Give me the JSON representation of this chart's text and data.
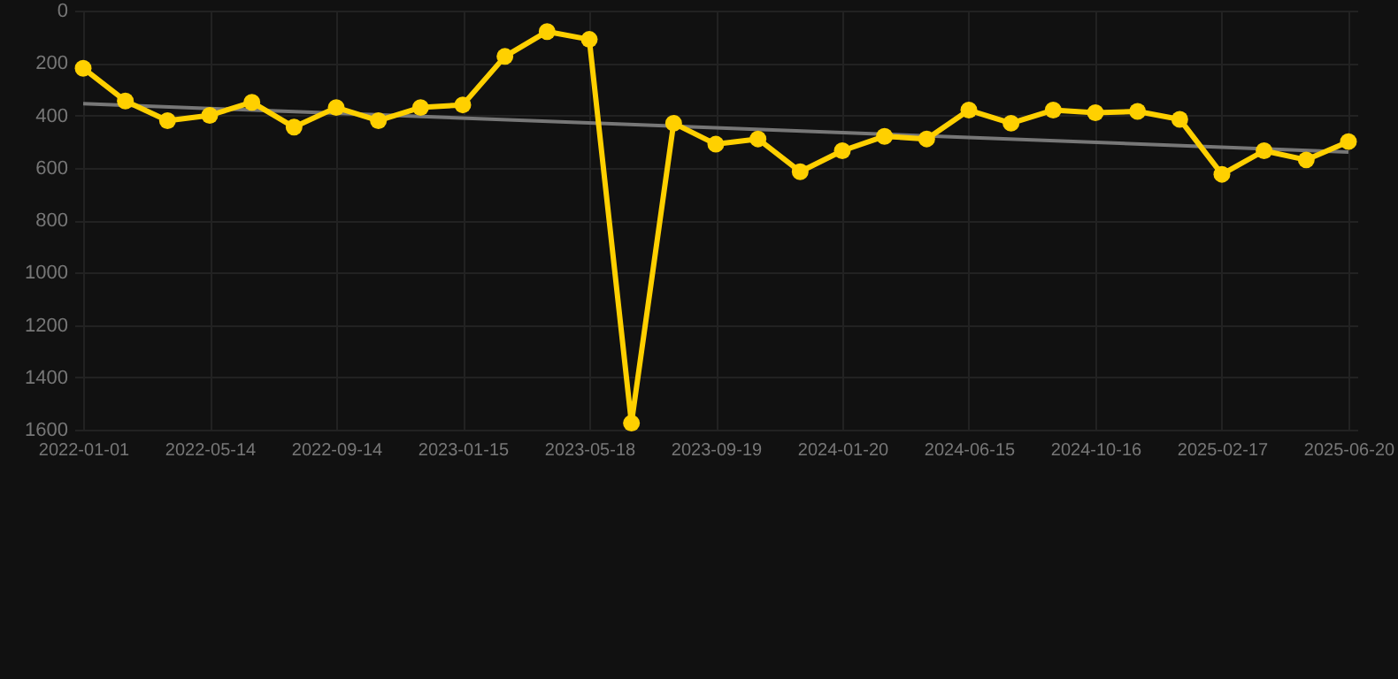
{
  "chart_data": {
    "type": "line",
    "categories": [
      "2022-01-01",
      null,
      null,
      "2022-05-14",
      null,
      null,
      "2022-09-14",
      null,
      null,
      "2023-01-15",
      null,
      null,
      "2023-05-18",
      null,
      null,
      "2023-09-19",
      null,
      null,
      "2024-01-20",
      null,
      null,
      "2024-06-15",
      null,
      null,
      "2024-10-16",
      null,
      null,
      "2025-02-17",
      null,
      null,
      "2025-06-20"
    ],
    "series": [
      {
        "color": "#ffd000",
        "values": [
          220,
          345,
          420,
          400,
          350,
          445,
          370,
          420,
          370,
          360,
          175,
          80,
          110,
          1575,
          430,
          510,
          490,
          615,
          535,
          480,
          490,
          380,
          430,
          380,
          390,
          385,
          415,
          625,
          535,
          570,
          500
        ]
      },
      {
        "type": "line",
        "color": "#777777",
        "marker": "none",
        "values": [
          355,
          null,
          null,
          null,
          null,
          null,
          null,
          null,
          null,
          null,
          null,
          null,
          null,
          null,
          null,
          null,
          null,
          null,
          null,
          null,
          null,
          null,
          null,
          null,
          null,
          null,
          null,
          null,
          null,
          null,
          540
        ]
      }
    ],
    "ylim": [
      1600,
      0
    ],
    "yticks": [
      0,
      200,
      400,
      600,
      800,
      1000,
      1200,
      1400,
      1600
    ],
    "grid": true,
    "marker": "circle"
  }
}
